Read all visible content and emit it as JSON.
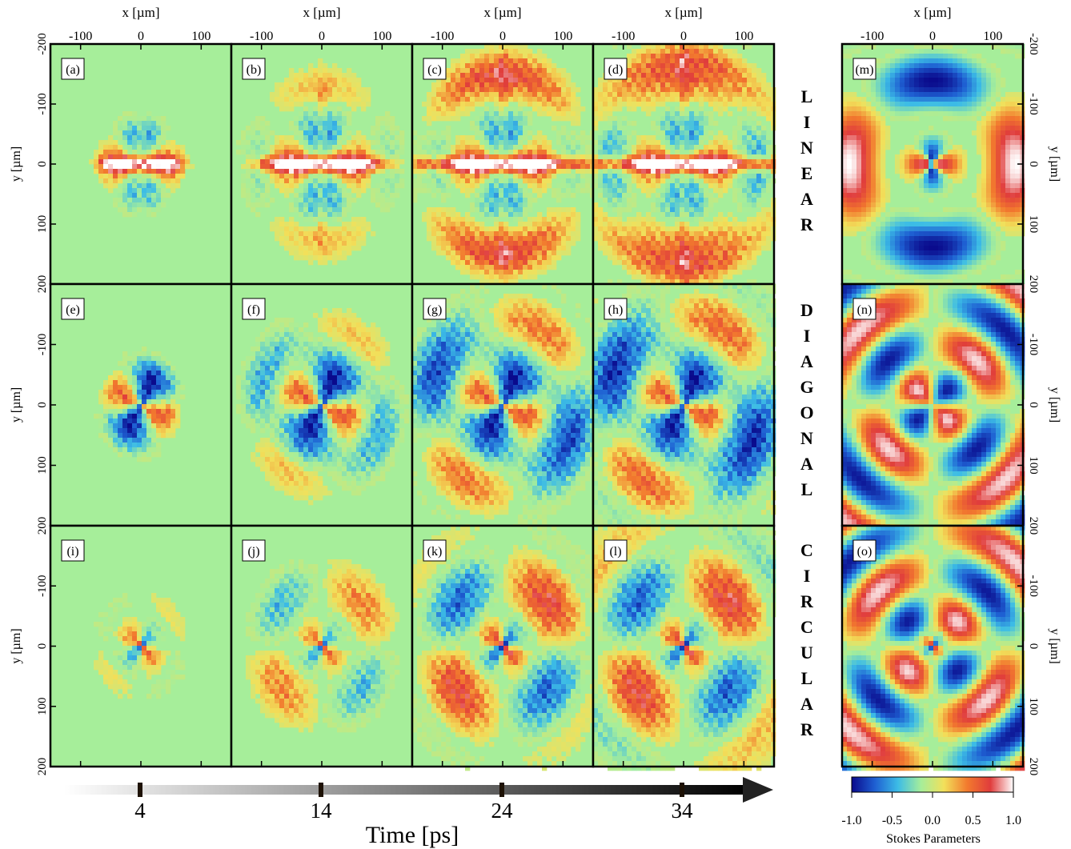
{
  "figure": {
    "x_axis_label": "x [µm]",
    "y_axis_label": "y [µm]",
    "x_ticks": [
      -100,
      0,
      100
    ],
    "y_ticks": [
      -200,
      -100,
      0,
      100,
      200
    ],
    "row_labels": [
      "LINEAR",
      "DIAGONAL",
      "CIRCULAR"
    ],
    "panel_labels": [
      [
        "(a)",
        "(b)",
        "(c)",
        "(d)",
        "(m)"
      ],
      [
        "(e)",
        "(f)",
        "(g)",
        "(h)",
        "(n)"
      ],
      [
        "(i)",
        "(j)",
        "(k)",
        "(l)",
        "(o)"
      ]
    ],
    "time_axis": {
      "label": "Time [ps]",
      "ticks": [
        4,
        14,
        24,
        34
      ]
    },
    "colorbar": {
      "label": "Stokes Parameters",
      "ticks": [
        "-1.0",
        "-0.5",
        "0.0",
        "0.5",
        "1.0"
      ],
      "colormap": [
        "#0a0a8c",
        "#1e5fd2",
        "#3cbce6",
        "#a6ee9a",
        "#f2e05a",
        "#f27a2e",
        "#e03c3c",
        "#ffffff"
      ]
    }
  },
  "chart_data": {
    "type": "heatmap",
    "x_range": [
      -150,
      150
    ],
    "y_range": [
      -200,
      200
    ],
    "value_range": [
      -1.0,
      1.0
    ],
    "rows": [
      "LINEAR",
      "DIAGONAL",
      "CIRCULAR"
    ],
    "time_ps": [
      4,
      14,
      24,
      34
    ],
    "experiment_panels": [
      {
        "id": "(a)",
        "row": "LINEAR",
        "time_ps": 4
      },
      {
        "id": "(b)",
        "row": "LINEAR",
        "time_ps": 14
      },
      {
        "id": "(c)",
        "row": "LINEAR",
        "time_ps": 24
      },
      {
        "id": "(d)",
        "row": "LINEAR",
        "time_ps": 34
      },
      {
        "id": "(e)",
        "row": "DIAGONAL",
        "time_ps": 4
      },
      {
        "id": "(f)",
        "row": "DIAGONAL",
        "time_ps": 14
      },
      {
        "id": "(g)",
        "row": "DIAGONAL",
        "time_ps": 24
      },
      {
        "id": "(h)",
        "row": "DIAGONAL",
        "time_ps": 34
      },
      {
        "id": "(i)",
        "row": "CIRCULAR",
        "time_ps": 4
      },
      {
        "id": "(j)",
        "row": "CIRCULAR",
        "time_ps": 14
      },
      {
        "id": "(k)",
        "row": "CIRCULAR",
        "time_ps": 24
      },
      {
        "id": "(l)",
        "row": "CIRCULAR",
        "time_ps": 34
      }
    ],
    "simulation_panels": [
      {
        "id": "(m)",
        "row": "LINEAR"
      },
      {
        "id": "(n)",
        "row": "DIAGONAL"
      },
      {
        "id": "(o)",
        "row": "CIRCULAR"
      }
    ]
  }
}
